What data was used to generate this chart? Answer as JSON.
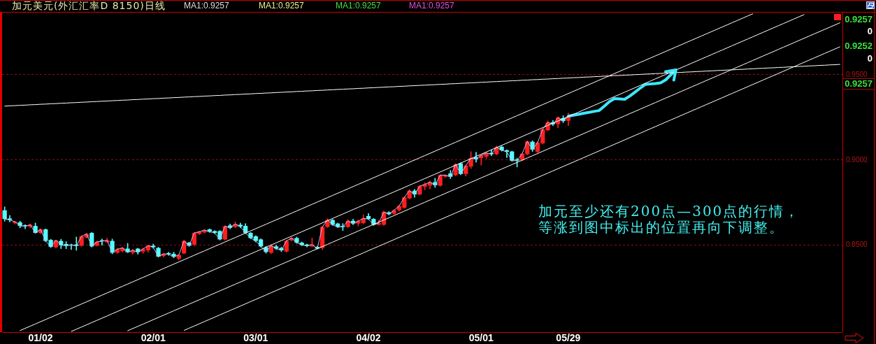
{
  "chart_data": {
    "type": "candlestick",
    "title": "加元美元(外汇汇率D 8150)日线",
    "categories": [
      null,
      null,
      null,
      null,
      null,
      null,
      null,
      "01/02",
      null,
      null,
      null,
      null,
      null,
      null,
      null,
      null,
      null,
      null,
      null,
      null,
      null,
      null,
      null,
      null,
      null,
      null,
      null,
      null,
      null,
      "02/01",
      null,
      null,
      null,
      null,
      null,
      null,
      null,
      null,
      null,
      null,
      null,
      null,
      null,
      null,
      null,
      null,
      null,
      null,
      null,
      "03/01",
      null,
      null,
      null,
      null,
      null,
      null,
      null,
      null,
      null,
      null,
      null,
      null,
      null,
      null,
      null,
      null,
      null,
      null,
      null,
      null,
      null,
      "04/02",
      null,
      null,
      null,
      null,
      null,
      null,
      null,
      null,
      null,
      null,
      null,
      null,
      null,
      null,
      null,
      null,
      null,
      null,
      null,
      null,
      null,
      "05/01",
      null,
      null,
      null,
      null,
      null,
      null,
      null,
      null,
      null,
      null,
      null,
      null,
      null,
      null,
      null,
      null,
      "05/29",
      null,
      null,
      null,
      null,
      null,
      null,
      null,
      null,
      null,
      null,
      null,
      null,
      null,
      null,
      null,
      null,
      null,
      null,
      null,
      null,
      null,
      null,
      null,
      null,
      null,
      null,
      null,
      null,
      null,
      null,
      null,
      null,
      null,
      null,
      null,
      null,
      null,
      null,
      null,
      null,
      null,
      null,
      null,
      null,
      null,
      null,
      null,
      null,
      null,
      null,
      null,
      null,
      null
    ],
    "ohlc": [
      [
        0.8705,
        0.8725,
        0.8641,
        0.8654
      ],
      [
        0.8657,
        0.8675,
        0.8637,
        0.8648
      ],
      [
        0.863,
        0.8641,
        0.8624,
        0.8638
      ],
      [
        0.8634,
        0.8641,
        0.8602,
        0.8613
      ],
      [
        0.8617,
        0.862,
        0.8597,
        0.8611
      ],
      [
        0.8609,
        0.8626,
        0.8602,
        0.862
      ],
      [
        0.8613,
        0.863,
        0.857,
        0.8572
      ],
      [
        0.8572,
        0.8596,
        0.8568,
        0.8593
      ],
      [
        0.8593,
        0.8596,
        0.8521,
        0.8525
      ],
      [
        0.8531,
        0.8535,
        0.8486,
        0.849
      ],
      [
        0.8488,
        0.853,
        0.8484,
        0.8529
      ],
      [
        0.8525,
        0.8535,
        0.848,
        0.85
      ],
      [
        0.8507,
        0.8521,
        0.8479,
        0.8497
      ],
      [
        0.8502,
        0.8507,
        0.8474,
        0.85
      ],
      [
        0.8504,
        0.8548,
        0.847,
        0.8496
      ],
      [
        0.8497,
        0.8556,
        0.8493,
        0.8552
      ],
      [
        0.8545,
        0.8571,
        0.8541,
        0.8566
      ],
      [
        0.8572,
        0.8575,
        0.8489,
        0.8493
      ],
      [
        0.8497,
        0.8525,
        0.8495,
        0.852
      ],
      [
        0.8529,
        0.8536,
        0.85,
        0.8523
      ],
      [
        0.8518,
        0.8541,
        0.8515,
        0.8529
      ],
      [
        0.8525,
        0.8536,
        0.8449,
        0.8456
      ],
      [
        0.8456,
        0.8482,
        0.8452,
        0.8477
      ],
      [
        0.8466,
        0.8488,
        0.846,
        0.8484
      ],
      [
        0.848,
        0.8511,
        0.8456,
        0.8459
      ],
      [
        0.8456,
        0.8477,
        0.8447,
        0.847
      ],
      [
        0.848,
        0.8482,
        0.8447,
        0.8459
      ],
      [
        0.8463,
        0.8484,
        0.8452,
        0.8477
      ],
      [
        0.847,
        0.85,
        0.8459,
        0.8497
      ],
      [
        0.8497,
        0.8507,
        0.8482,
        0.8488
      ],
      [
        0.8484,
        0.8488,
        0.843,
        0.8433
      ],
      [
        0.8437,
        0.8452,
        0.843,
        0.8449
      ],
      [
        0.8454,
        0.8459,
        0.844,
        0.8447
      ],
      [
        0.8449,
        0.8459,
        0.8426,
        0.8432
      ],
      [
        0.8422,
        0.8445,
        0.8415,
        0.8443
      ],
      [
        0.8452,
        0.8528,
        0.8449,
        0.8525
      ],
      [
        0.8515,
        0.8518,
        0.8493,
        0.8497
      ],
      [
        0.8504,
        0.8574,
        0.8497,
        0.8572
      ],
      [
        0.8566,
        0.8582,
        0.8562,
        0.8579
      ],
      [
        0.8575,
        0.8593,
        0.8571,
        0.8589
      ],
      [
        0.8593,
        0.8596,
        0.8575,
        0.8579
      ],
      [
        0.8583,
        0.8586,
        0.8568,
        0.8572
      ],
      [
        0.8583,
        0.8586,
        0.853,
        0.8534
      ],
      [
        0.8534,
        0.8615,
        0.853,
        0.8611
      ],
      [
        0.8616,
        0.8625,
        0.8596,
        0.8602
      ],
      [
        0.8607,
        0.8637,
        0.8602,
        0.8624
      ],
      [
        0.862,
        0.863,
        0.8602,
        0.8609
      ],
      [
        0.8613,
        0.8627,
        0.8568,
        0.8572
      ],
      [
        0.8572,
        0.8575,
        0.8538,
        0.8542
      ],
      [
        0.8552,
        0.8556,
        0.8519,
        0.8525
      ],
      [
        0.8534,
        0.8537,
        0.8489,
        0.8493
      ],
      [
        0.8488,
        0.8493,
        0.8453,
        0.846
      ],
      [
        0.8456,
        0.8504,
        0.8451,
        0.8497
      ],
      [
        0.8493,
        0.85,
        0.8474,
        0.848
      ],
      [
        0.8484,
        0.8488,
        0.8462,
        0.847
      ],
      [
        0.8463,
        0.853,
        0.8459,
        0.8525
      ],
      [
        0.8529,
        0.8546,
        0.8525,
        0.8542
      ],
      [
        0.8542,
        0.8548,
        0.8511,
        0.8515
      ],
      [
        0.8515,
        0.8519,
        0.8497,
        0.8501
      ],
      [
        0.8504,
        0.8507,
        0.849,
        0.8496
      ],
      [
        0.8493,
        0.8542,
        0.849,
        0.8504
      ],
      [
        0.849,
        0.8493,
        0.8477,
        0.848
      ],
      [
        0.8484,
        0.8611,
        0.8474,
        0.8607
      ],
      [
        0.8607,
        0.8656,
        0.8604,
        0.8648
      ],
      [
        0.8648,
        0.8652,
        0.8616,
        0.862
      ],
      [
        0.8627,
        0.863,
        0.8603,
        0.8607
      ],
      [
        0.8613,
        0.8627,
        0.8586,
        0.8607
      ],
      [
        0.8607,
        0.865,
        0.8603,
        0.8643
      ],
      [
        0.8643,
        0.8652,
        0.862,
        0.8627
      ],
      [
        0.8627,
        0.8648,
        0.8613,
        0.8641
      ],
      [
        0.863,
        0.8679,
        0.8625,
        0.8657
      ],
      [
        0.8671,
        0.8686,
        0.865,
        0.8654
      ],
      [
        0.8654,
        0.8657,
        0.8616,
        0.862
      ],
      [
        0.862,
        0.8646,
        0.8616,
        0.863
      ],
      [
        0.862,
        0.8701,
        0.8616,
        0.8695
      ],
      [
        0.8693,
        0.8697,
        0.8677,
        0.8682
      ],
      [
        0.8685,
        0.871,
        0.868,
        0.8705
      ],
      [
        0.8705,
        0.8735,
        0.87,
        0.873
      ],
      [
        0.872,
        0.8785,
        0.8716,
        0.8781
      ],
      [
        0.8775,
        0.8825,
        0.8771,
        0.882
      ],
      [
        0.882,
        0.8828,
        0.8781,
        0.8798
      ],
      [
        0.8798,
        0.885,
        0.8795,
        0.8847
      ],
      [
        0.8843,
        0.8866,
        0.8825,
        0.8857
      ],
      [
        0.885,
        0.8877,
        0.883,
        0.887
      ],
      [
        0.887,
        0.8893,
        0.8839,
        0.8852
      ],
      [
        0.885,
        0.8915,
        0.8846,
        0.8911
      ],
      [
        0.8902,
        0.8913,
        0.8898,
        0.8911
      ],
      [
        0.8921,
        0.8939,
        0.8891,
        0.8902
      ],
      [
        0.8911,
        0.8978,
        0.8906,
        0.8975
      ],
      [
        0.898,
        0.8984,
        0.8913,
        0.8918
      ],
      [
        0.8918,
        0.897,
        0.8906,
        0.8966
      ],
      [
        0.8962,
        0.9049,
        0.895,
        0.9011
      ],
      [
        0.9016,
        0.9045,
        0.8987,
        0.9005
      ],
      [
        0.9011,
        0.903,
        0.897,
        0.9027
      ],
      [
        0.902,
        0.9044,
        0.9008,
        0.9041
      ],
      [
        0.9041,
        0.9061,
        0.9025,
        0.9034
      ],
      [
        0.9034,
        0.9082,
        0.903,
        0.9075
      ],
      [
        0.9078,
        0.9082,
        0.9052,
        0.9057
      ],
      [
        0.9057,
        0.9061,
        0.9014,
        0.9048
      ],
      [
        0.905,
        0.9052,
        0.8992,
        0.8996
      ],
      [
        0.9004,
        0.9011,
        0.8959,
        0.8996
      ],
      [
        0.9,
        0.9039,
        0.8995,
        0.9037
      ],
      [
        0.9034,
        0.9113,
        0.903,
        0.9109
      ],
      [
        0.9107,
        0.9113,
        0.905,
        0.9061
      ],
      [
        0.9048,
        0.9107,
        0.9044,
        0.9102
      ],
      [
        0.9098,
        0.9184,
        0.9093,
        0.918
      ],
      [
        0.9175,
        0.923,
        0.9171,
        0.9221
      ],
      [
        0.9221,
        0.9232,
        0.9202,
        0.921
      ],
      [
        0.921,
        0.9254,
        0.9189,
        0.9249
      ],
      [
        0.9246,
        0.926,
        0.9219,
        0.9228
      ],
      [
        0.923,
        0.9275,
        0.9202,
        0.9257
      ],
      null,
      null,
      null,
      null,
      null,
      null,
      null,
      null,
      null,
      null,
      null,
      null,
      null,
      null,
      null,
      null,
      null,
      null,
      null,
      null,
      null,
      null,
      null,
      null,
      null,
      null,
      null,
      null,
      null,
      null,
      null,
      null,
      null,
      null,
      null,
      null,
      null,
      null,
      null,
      null,
      null,
      null,
      null,
      null,
      null,
      null,
      null,
      null,
      null,
      null,
      null,
      null,
      null
    ],
    "colors": [
      "#54ffff",
      "#54ffff",
      "#ff1e1e",
      "#54ffff",
      "#54ffff",
      "#ff1e1e",
      "#54ffff",
      "#ff1e1e",
      "#54ffff",
      "#54ffff",
      "#ff1e1e",
      "#54ffff",
      "#54ffff",
      "#54ffff",
      "#54ffff",
      "#ff1e1e",
      "#ff1e1e",
      "#54ffff",
      "#ff1e1e",
      "#54ffff",
      "#ff1e1e",
      "#54ffff",
      "#ff1e1e",
      "#ff1e1e",
      "#54ffff",
      "#ff1e1e",
      "#54ffff",
      "#ff1e1e",
      "#ff1e1e",
      "#54ffff",
      "#54ffff",
      "#ff1e1e",
      "#54ffff",
      "#54ffff",
      "#ff1e1e",
      "#ff1e1e",
      "#54ffff",
      "#ff1e1e",
      "#ff1e1e",
      "#ff1e1e",
      "#54ffff",
      "#54ffff",
      "#54ffff",
      "#ff1e1e",
      "#54ffff",
      "#ff1e1e",
      "#54ffff",
      "#54ffff",
      "#54ffff",
      "#54ffff",
      "#54ffff",
      "#54ffff",
      "#ff1e1e",
      "#54ffff",
      "#54ffff",
      "#ff1e1e",
      "#ff1e1e",
      "#54ffff",
      "#54ffff",
      "#54ffff",
      "#ff1e1e",
      "#54ffff",
      "#ff1e1e",
      "#ff1e1e",
      "#54ffff",
      "#54ffff",
      "#54ffff",
      "#ff1e1e",
      "#54ffff",
      "#ff1e1e",
      "#ff1e1e",
      "#54ffff",
      "#54ffff",
      "#ff1e1e",
      "#ff1e1e",
      "#54ffff",
      "#ff1e1e",
      "#ff1e1e",
      "#ff1e1e",
      "#ff1e1e",
      "#54ffff",
      "#ff1e1e",
      "#ff1e1e",
      "#ff1e1e",
      "#54ffff",
      "#ff1e1e",
      "#ff1e1e",
      "#54ffff",
      "#ff1e1e",
      "#54ffff",
      "#ff1e1e",
      "#ff1e1e",
      "#54ffff",
      "#ff1e1e",
      "#ff1e1e",
      "#54ffff",
      "#ff1e1e",
      "#54ffff",
      "#54ffff",
      "#54ffff",
      "#54ffff",
      "#ff1e1e",
      "#ff1e1e",
      "#54ffff",
      "#ff1e1e",
      "#ff1e1e",
      "#ff1e1e",
      "#54ffff",
      "#ff1e1e",
      "#54ffff",
      "#ff1e1e",
      null,
      null,
      null,
      null,
      null,
      null,
      null,
      null,
      null,
      null,
      null,
      null,
      null,
      null,
      null,
      null,
      null,
      null,
      null,
      null,
      null,
      null,
      null,
      null,
      null,
      null,
      null,
      null,
      null,
      null,
      null,
      null,
      null,
      null,
      null,
      null,
      null,
      null,
      null,
      null,
      null,
      null,
      null,
      null,
      null,
      null,
      null,
      null,
      null,
      null,
      null,
      null,
      null
    ],
    "ylim": [
      0.799,
      0.9865
    ],
    "yticks": [
      {
        "value": 0.85,
        "label": "0.8500"
      },
      {
        "value": 0.9,
        "label": "0.9000"
      },
      {
        "value": 0.95,
        "label": "0.9500"
      }
    ],
    "grid": "y",
    "series": [
      {
        "type": "line",
        "color": "#ffffff",
        "values": [
          null,
          null,
          null,
          0.7999,
          0.8012,
          0.8025,
          0.8038,
          0.8051,
          0.8064,
          0.8077,
          0.809,
          0.8103,
          0.8116,
          0.8129,
          0.8142,
          0.8155,
          0.8168,
          0.8181,
          0.8194,
          0.8207,
          0.822,
          0.8233,
          0.8246,
          0.8259,
          0.8272,
          0.8285,
          0.8298,
          0.8311,
          0.8324,
          0.8337,
          0.835,
          0.8363,
          0.8376,
          0.8389,
          0.8402,
          0.8415,
          0.8428,
          0.8441,
          0.8454,
          0.8467,
          0.848,
          0.8493,
          0.8506,
          0.8519,
          0.8532,
          0.8545,
          0.8558,
          0.8571,
          0.8584,
          0.8597,
          0.861,
          0.8623,
          0.8636,
          0.8649,
          0.8662,
          0.8675,
          0.8688,
          0.8701,
          0.8714,
          0.8727,
          0.874,
          0.8753,
          0.8766,
          0.8779,
          0.8792,
          0.8805,
          0.8818,
          0.8831,
          0.8844,
          0.8857,
          0.887,
          0.8883,
          0.8896,
          0.8909,
          0.8922,
          0.8935,
          0.8948,
          0.8961,
          0.8974,
          0.8987,
          0.9,
          0.9013,
          0.9026,
          0.9039,
          0.9052,
          0.9065,
          0.9078,
          0.9091,
          0.9104,
          0.9117,
          0.913,
          0.9143,
          0.9156,
          0.9169,
          0.9182,
          0.9195,
          0.9208,
          0.9221,
          0.9234,
          0.9247,
          0.926,
          0.9273,
          0.9286,
          0.9299,
          0.9312,
          0.9325,
          0.9338,
          0.9351,
          0.9364,
          0.9377,
          0.939,
          0.9403,
          0.9416,
          0.9429,
          0.9442,
          0.9455,
          0.9468,
          0.9481,
          0.9494,
          0.9507,
          0.952,
          0.9533,
          0.9546,
          0.9559,
          0.9572,
          0.9585,
          0.9598,
          0.9611,
          0.9624,
          0.9637,
          0.965,
          0.9663,
          0.9676,
          0.9689,
          0.9702,
          0.9715,
          0.9728,
          0.9741,
          0.9754,
          0.9767,
          0.978,
          0.9793,
          0.9806,
          0.9819,
          0.9832,
          0.9845,
          0.9858,
          null,
          null,
          null,
          null,
          null,
          null,
          null,
          null,
          null,
          null,
          null,
          null,
          null,
          null,
          null,
          null,
          null
        ]
      },
      {
        "type": "line",
        "color": "#ffffff",
        "values": [
          null,
          null,
          null,
          null,
          null,
          null,
          null,
          null,
          null,
          null,
          null,
          null,
          null,
          0.7994,
          0.8007,
          0.802,
          0.8033,
          0.8046,
          0.8059,
          0.8072,
          0.8085,
          0.8098,
          0.8111,
          0.8124,
          0.8137,
          0.815,
          0.8163,
          0.8176,
          0.8189,
          0.8202,
          0.8215,
          0.8228,
          0.8241,
          0.8254,
          0.8267,
          0.828,
          0.8293,
          0.8306,
          0.8319,
          0.8332,
          0.8345,
          0.8358,
          0.8371,
          0.8384,
          0.8397,
          0.841,
          0.8423,
          0.8436,
          0.8449,
          0.8462,
          0.8475,
          0.8488,
          0.8501,
          0.8514,
          0.8527,
          0.854,
          0.8553,
          0.8566,
          0.8579,
          0.8592,
          0.8605,
          0.8618,
          0.8631,
          0.8644,
          0.8657,
          0.867,
          0.8683,
          0.8696,
          0.8709,
          0.8722,
          0.8735,
          0.8748,
          0.8761,
          0.8774,
          0.8787,
          0.88,
          0.8813,
          0.8826,
          0.8839,
          0.8852,
          0.8865,
          0.8878,
          0.8891,
          0.8904,
          0.8917,
          0.893,
          0.8943,
          0.8956,
          0.8969,
          0.8982,
          0.8995,
          0.9008,
          0.9021,
          0.9034,
          0.9047,
          0.906,
          0.9073,
          0.9086,
          0.9099,
          0.9112,
          0.9125,
          0.9138,
          0.9151,
          0.9164,
          0.9177,
          0.919,
          0.9203,
          0.9216,
          0.9229,
          0.9242,
          0.9255,
          0.9268,
          0.9281,
          0.9294,
          0.9307,
          0.932,
          0.9333,
          0.9346,
          0.9359,
          0.9372,
          0.9385,
          0.9398,
          0.9411,
          0.9424,
          0.9437,
          0.945,
          0.9463,
          0.9476,
          0.9489,
          0.9502,
          0.9515,
          0.9528,
          0.9541,
          0.9554,
          0.9567,
          0.958,
          0.9593,
          0.9606,
          0.9619,
          0.9632,
          0.9645,
          0.9658,
          0.9671,
          0.9684,
          0.9697,
          0.971,
          0.9723,
          0.9736,
          0.9749,
          0.9762,
          0.9775,
          0.9788,
          0.9801,
          0.9814,
          0.9827,
          0.984,
          0.9853,
          null,
          null,
          null,
          null,
          null,
          null,
          null
        ]
      },
      {
        "type": "line",
        "color": "#ffffff",
        "values": [
          null,
          null,
          null,
          null,
          null,
          null,
          null,
          null,
          null,
          null,
          null,
          null,
          null,
          null,
          null,
          null,
          null,
          null,
          null,
          null,
          null,
          null,
          null,
          null,
          0.7998,
          0.8011,
          0.8024,
          0.8037,
          0.805,
          0.8063,
          0.8076,
          0.8089,
          0.8102,
          0.8115,
          0.8128,
          0.8141,
          0.8154,
          0.8167,
          0.818,
          0.8193,
          0.8206,
          0.8219,
          0.8232,
          0.8245,
          0.8258,
          0.8271,
          0.8284,
          0.8297,
          0.831,
          0.8323,
          0.8336,
          0.8349,
          0.8362,
          0.8375,
          0.8388,
          0.8401,
          0.8414,
          0.8427,
          0.844,
          0.8453,
          0.8466,
          0.8479,
          0.8492,
          0.8505,
          0.8518,
          0.8531,
          0.8544,
          0.8557,
          0.857,
          0.8583,
          0.8596,
          0.8609,
          0.8622,
          0.8635,
          0.8648,
          0.8661,
          0.8674,
          0.8687,
          0.87,
          0.8713,
          0.8726,
          0.8739,
          0.8752,
          0.8765,
          0.8778,
          0.8791,
          0.8804,
          0.8817,
          0.883,
          0.8843,
          0.8856,
          0.8869,
          0.8882,
          0.8895,
          0.8908,
          0.8921,
          0.8934,
          0.8947,
          0.896,
          0.8973,
          0.8986,
          0.8999,
          0.9012,
          0.9025,
          0.9038,
          0.9051,
          0.9064,
          0.9077,
          0.909,
          0.9103,
          0.9116,
          0.9129,
          0.9142,
          0.9155,
          0.9168,
          0.9181,
          0.9194,
          0.9207,
          0.922,
          0.9233,
          0.9246,
          0.9259,
          0.9272,
          0.9285,
          0.9298,
          0.9311,
          0.9324,
          0.9337,
          0.935,
          0.9363,
          0.9376,
          0.9389,
          0.9402,
          0.9415,
          0.9428,
          0.9441,
          0.9454,
          0.9467,
          0.948,
          0.9493,
          0.9506,
          0.9519,
          0.9532,
          0.9545,
          0.9558,
          0.9571,
          0.9584,
          0.9597,
          0.961,
          0.9623,
          0.9636,
          0.9649,
          0.9662,
          0.9675,
          0.9688,
          0.9701,
          0.9714,
          0.9727,
          0.974,
          0.9753,
          0.9766,
          0.9779,
          0.9792,
          0.9805
        ]
      },
      {
        "type": "line",
        "color": "#ffffff",
        "values": [
          null,
          null,
          null,
          null,
          null,
          null,
          null,
          null,
          null,
          null,
          null,
          null,
          null,
          null,
          null,
          null,
          null,
          null,
          null,
          null,
          null,
          null,
          null,
          null,
          null,
          null,
          null,
          null,
          null,
          null,
          null,
          null,
          null,
          null,
          null,
          0.8,
          0.8013,
          0.8026,
          0.8039,
          0.8052,
          0.8065,
          0.8078,
          0.8091,
          0.8104,
          0.8117,
          0.813,
          0.8143,
          0.8156,
          0.8169,
          0.8182,
          0.8195,
          0.8208,
          0.8221,
          0.8234,
          0.8247,
          0.826,
          0.8273,
          0.8286,
          0.8299,
          0.8312,
          0.8325,
          0.8338,
          0.8351,
          0.8364,
          0.8377,
          0.839,
          0.8403,
          0.8416,
          0.8429,
          0.8442,
          0.8455,
          0.8468,
          0.8481,
          0.8494,
          0.8507,
          0.852,
          0.8533,
          0.8546,
          0.8559,
          0.8572,
          0.8585,
          0.8598,
          0.8611,
          0.8624,
          0.8637,
          0.865,
          0.8663,
          0.8676,
          0.8689,
          0.8702,
          0.8715,
          0.8728,
          0.8741,
          0.8754,
          0.8767,
          0.878,
          0.8793,
          0.8806,
          0.8819,
          0.8832,
          0.8845,
          0.8858,
          0.8871,
          0.8884,
          0.8897,
          0.891,
          0.8923,
          0.8936,
          0.8949,
          0.8962,
          0.8975,
          0.8988,
          0.9001,
          0.9014,
          0.9027,
          0.904,
          0.9053,
          0.9066,
          0.9079,
          0.9092,
          0.9105,
          0.9118,
          0.9131,
          0.9144,
          0.9157,
          0.917,
          0.9183,
          0.9196,
          0.9209,
          0.9222,
          0.9235,
          0.9248,
          0.9261,
          0.9274,
          0.9287,
          0.93,
          0.9313,
          0.9326,
          0.9339,
          0.9352,
          0.9365,
          0.9378,
          0.9391,
          0.9404,
          0.9417,
          0.943,
          0.9443,
          0.9456,
          0.9469,
          0.9482,
          0.9495,
          0.9508,
          0.9521,
          0.9534,
          0.9547,
          0.956,
          0.9573,
          0.9586,
          0.9599,
          0.9612,
          0.9625,
          0.9638,
          0.9651,
          0.9664
        ]
      },
      {
        "type": "line",
        "color": "#ffffff",
        "values": [
          0.9316,
          0.9318,
          0.9319,
          0.9321,
          0.9322,
          0.9324,
          0.9325,
          0.9327,
          0.9328,
          0.933,
          0.9331,
          0.9333,
          0.9334,
          0.9336,
          0.9337,
          0.9339,
          0.934,
          0.9342,
          0.9343,
          0.9345,
          0.9346,
          0.9348,
          0.9349,
          0.9351,
          0.9352,
          0.9354,
          0.9355,
          0.9357,
          0.9358,
          0.936,
          0.9361,
          0.9363,
          0.9364,
          0.9366,
          0.9367,
          0.9369,
          0.937,
          0.9372,
          0.9373,
          0.9375,
          0.9376,
          0.9378,
          0.9379,
          0.9381,
          0.9382,
          0.9384,
          0.9385,
          0.9387,
          0.9388,
          0.939,
          0.9391,
          0.9393,
          0.9394,
          0.9396,
          0.9397,
          0.9399,
          0.94,
          0.9402,
          0.9403,
          0.9405,
          0.9406,
          0.9408,
          0.9409,
          0.9411,
          0.9412,
          0.9414,
          0.9415,
          0.9417,
          0.9418,
          0.942,
          0.9421,
          0.9423,
          0.9424,
          0.9426,
          0.9427,
          0.9429,
          0.943,
          0.9432,
          0.9433,
          0.9435,
          0.9436,
          0.9438,
          0.9439,
          0.9441,
          0.9442,
          0.9444,
          0.9445,
          0.9447,
          0.9448,
          0.945,
          0.9451,
          0.9453,
          0.9454,
          0.9456,
          0.9457,
          0.9459,
          0.946,
          0.9462,
          0.9463,
          0.9465,
          0.9466,
          0.9468,
          0.9469,
          0.9471,
          0.9472,
          0.9474,
          0.9475,
          0.9477,
          0.9478,
          0.948,
          0.9481,
          0.9483,
          0.9484,
          0.9486,
          0.9487,
          0.9489,
          0.949,
          0.9492,
          0.9493,
          0.9495,
          0.9496,
          0.9498,
          0.9499,
          0.9501,
          0.9502,
          0.9504,
          0.9505,
          0.9507,
          0.9508,
          0.951,
          0.9511,
          0.9513,
          0.9514,
          0.9516,
          0.9517,
          0.9519,
          0.952,
          0.9522,
          0.9523,
          0.9525,
          0.9526,
          0.9528,
          0.9529,
          0.9531,
          0.9532,
          0.9534,
          0.9535,
          0.9537,
          0.9538,
          0.954,
          0.9541,
          0.9543,
          0.9544,
          0.9546,
          0.9547,
          0.9549,
          0.955,
          0.9552,
          0.9553,
          0.9555,
          0.9556,
          0.9558,
          0.9559,
          0.9561
        ]
      },
      {
        "type": "line",
        "color": "#c8b4f0",
        "values": [
          0.8654,
          0.8648,
          0.8638,
          0.8613,
          0.8611,
          0.862,
          0.8572,
          0.8593,
          0.8525,
          0.849,
          0.8529,
          0.85,
          0.8497,
          0.85,
          0.8496,
          0.8552,
          0.8566,
          0.8493,
          0.852,
          0.8523,
          0.8529,
          0.8456,
          0.8477,
          0.8484,
          0.8459,
          0.847,
          0.8459,
          0.8477,
          0.8497,
          0.8488,
          0.8433,
          0.8449,
          0.8447,
          0.8432,
          0.8443,
          0.8525,
          0.8497,
          0.8572,
          0.8579,
          0.8589,
          0.8579,
          0.8572,
          0.8534,
          0.8611,
          0.8602,
          0.8624,
          0.8609,
          0.8572,
          0.8542,
          0.8525,
          0.8493,
          0.846,
          0.8497,
          0.848,
          0.847,
          0.8525,
          0.8542,
          0.8515,
          0.8501,
          0.8496,
          0.8504,
          0.848,
          0.8607,
          0.8648,
          0.862,
          0.8607,
          0.8607,
          0.8643,
          0.8627,
          0.8641,
          0.8657,
          0.8654,
          0.862,
          0.863,
          0.8695,
          0.8682,
          0.8705,
          0.873,
          0.8781,
          0.882,
          0.8798,
          0.8847,
          0.8857,
          0.887,
          0.8852,
          0.8911,
          0.8911,
          0.8902,
          0.8975,
          0.8918,
          0.8966,
          0.9011,
          0.9005,
          0.9027,
          0.9041,
          0.9034,
          0.9075,
          0.9057,
          0.9048,
          0.8996,
          0.8996,
          0.9037,
          0.9109,
          0.9061,
          0.9102,
          0.918,
          0.9221,
          0.921,
          0.9249,
          0.9228,
          0.9257,
          null,
          null,
          null,
          null,
          null,
          null,
          null,
          null,
          null,
          null,
          null,
          null,
          null,
          null,
          null,
          null,
          null,
          null,
          null,
          null,
          null,
          null,
          null,
          null,
          null,
          null,
          null,
          null,
          null,
          null,
          null,
          null,
          null,
          null,
          null,
          null,
          null,
          null,
          null,
          null,
          null,
          null,
          null,
          null,
          null,
          null,
          null,
          null,
          null,
          null,
          null,
          null,
          null
        ]
      },
      {
        "type": "line",
        "color": "#3ce8ff",
        "values": [
          null,
          null,
          null,
          null,
          null,
          null,
          null,
          null,
          null,
          null,
          null,
          null,
          null,
          null,
          null,
          null,
          null,
          null,
          null,
          null,
          null,
          null,
          null,
          null,
          null,
          null,
          null,
          null,
          null,
          null,
          null,
          null,
          null,
          null,
          null,
          null,
          null,
          null,
          null,
          null,
          null,
          null,
          null,
          null,
          null,
          null,
          null,
          null,
          null,
          null,
          null,
          null,
          null,
          null,
          null,
          null,
          null,
          null,
          null,
          null,
          null,
          null,
          null,
          null,
          null,
          null,
          null,
          null,
          null,
          null,
          null,
          null,
          null,
          null,
          null,
          null,
          null,
          null,
          null,
          null,
          null,
          null,
          null,
          null,
          null,
          null,
          null,
          null,
          null,
          null,
          null,
          null,
          null,
          null,
          null,
          null,
          null,
          null,
          null,
          null,
          null,
          null,
          null,
          null,
          null,
          null,
          null,
          null,
          null,
          null,
          0.9257,
          0.9263,
          0.9268,
          0.9274,
          0.9279,
          0.9285,
          0.929,
          0.9315,
          0.9342,
          0.936,
          0.9358,
          0.9356,
          0.9375,
          0.9398,
          0.9421,
          0.9443,
          0.9446,
          0.9449,
          0.9453,
          0.947,
          0.95,
          0.9529,
          null,
          null,
          null,
          null,
          null,
          null,
          null,
          null,
          null,
          null,
          null,
          null,
          null,
          null,
          null,
          null,
          null,
          null,
          null,
          null,
          null,
          null,
          null,
          null,
          null,
          null,
          null,
          null,
          null,
          null,
          null,
          null
        ]
      }
    ],
    "annotations": [
      "MA1:0.9257",
      "MA1:0.9257",
      "MA1:0.9257",
      "MA1:0.9257",
      "0.9257",
      "0",
      "0.9252",
      "0",
      "0.9257",
      "加元至少还有200点—300点的行情，等涨到图中标出的位置再向下调整。"
    ]
  }
}
